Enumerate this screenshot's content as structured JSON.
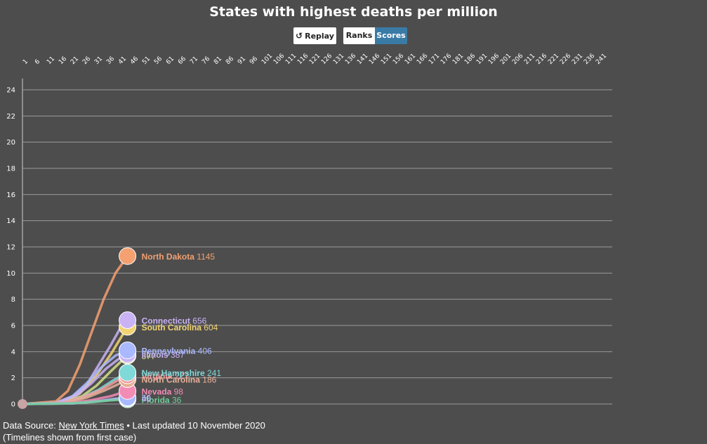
{
  "header": {
    "title": "States with highest deaths per million"
  },
  "controls": {
    "replay_label": "Replay",
    "ranks_label": "Ranks",
    "scores_label": "Scores",
    "active_mode": "Scores"
  },
  "colors": {
    "background": "#4d4d4d",
    "active_button": "#3a7ba6",
    "grid": "#9a9a9a"
  },
  "chart_data": {
    "type": "line",
    "title": "States with highest deaths per million",
    "x_ticks": [
      1,
      6,
      11,
      16,
      21,
      26,
      31,
      36,
      41,
      46,
      51,
      56,
      61,
      66,
      71,
      76,
      81,
      86,
      91,
      96,
      101,
      106,
      111,
      116,
      121,
      126,
      131,
      136,
      141,
      146,
      151,
      156,
      161,
      166,
      171,
      176,
      181,
      186,
      191,
      196,
      201,
      206,
      211,
      216,
      221,
      226,
      231,
      236,
      241
    ],
    "x_axis_position": "top",
    "ylim": [
      0,
      24
    ],
    "y_ticks": [
      0,
      2,
      4,
      6,
      8,
      10,
      12,
      14,
      16,
      18,
      20,
      22,
      24
    ],
    "grid": true,
    "current_day": 45,
    "series": [
      {
        "name": "North Dakota",
        "label_value": "1145",
        "color": "#f4a070",
        "values": [
          [
            1,
            0
          ],
          [
            15,
            0.2
          ],
          [
            20,
            1
          ],
          [
            25,
            3
          ],
          [
            30,
            5.5
          ],
          [
            35,
            8
          ],
          [
            40,
            10
          ],
          [
            45,
            11.3
          ]
        ]
      },
      {
        "name": "Connecticut",
        "label_value": "656",
        "color": "#c9b3f5",
        "values": [
          [
            1,
            0
          ],
          [
            15,
            0.1
          ],
          [
            22,
            0.6
          ],
          [
            28,
            1.5
          ],
          [
            33,
            3
          ],
          [
            38,
            4.5
          ],
          [
            42,
            5.8
          ],
          [
            45,
            6.4
          ]
        ]
      },
      {
        "name": "South Carolina",
        "label_value": "604",
        "color": "#f2d374",
        "values": [
          [
            1,
            0
          ],
          [
            18,
            0.1
          ],
          [
            25,
            0.8
          ],
          [
            32,
            2.2
          ],
          [
            38,
            3.8
          ],
          [
            42,
            5
          ],
          [
            45,
            5.9
          ]
        ]
      },
      {
        "name": "Pennsylvania",
        "label_value": "406",
        "color": "#a9b8ff",
        "values": [
          [
            1,
            0
          ],
          [
            16,
            0.1
          ],
          [
            22,
            0.6
          ],
          [
            28,
            1.6
          ],
          [
            34,
            2.8
          ],
          [
            40,
            3.7
          ],
          [
            45,
            4.1
          ]
        ]
      },
      {
        "name": "Illinois",
        "label_value": "387",
        "color": "#c9b3f5",
        "values": [
          [
            1,
            0
          ],
          [
            16,
            0.1
          ],
          [
            24,
            0.7
          ],
          [
            30,
            1.6
          ],
          [
            36,
            2.7
          ],
          [
            41,
            3.4
          ],
          [
            45,
            3.8
          ]
        ]
      },
      {
        "name": "",
        "label_value": "377",
        "color": "#d2e08a",
        "values": [
          [
            1,
            0
          ],
          [
            18,
            0.1
          ],
          [
            26,
            0.6
          ],
          [
            32,
            1.4
          ],
          [
            38,
            2.5
          ],
          [
            42,
            3.2
          ],
          [
            45,
            3.7
          ]
        ]
      },
      {
        "name": "New Hampshire",
        "label_value": "241",
        "color": "#7fd9d9",
        "values": [
          [
            1,
            0
          ],
          [
            18,
            0.1
          ],
          [
            26,
            0.5
          ],
          [
            33,
            1.1
          ],
          [
            39,
            1.8
          ],
          [
            45,
            2.4
          ]
        ]
      },
      {
        "name": "Virginia",
        "label_value": "227",
        "color": "#f59c9c",
        "values": [
          [
            1,
            0
          ],
          [
            18,
            0.1
          ],
          [
            26,
            0.5
          ],
          [
            33,
            1.0
          ],
          [
            39,
            1.6
          ],
          [
            45,
            2.2
          ]
        ]
      },
      {
        "name": "North Carolina",
        "label_value": "186",
        "color": "#e8b098",
        "values": [
          [
            1,
            0
          ],
          [
            20,
            0.1
          ],
          [
            28,
            0.5
          ],
          [
            35,
            1.0
          ],
          [
            41,
            1.5
          ],
          [
            45,
            1.9
          ]
        ]
      },
      {
        "name": "Nevada",
        "label_value": "98",
        "color": "#f28cb4",
        "values": [
          [
            1,
            0
          ],
          [
            22,
            0.1
          ],
          [
            30,
            0.3
          ],
          [
            38,
            0.6
          ],
          [
            45,
            1.0
          ]
        ]
      },
      {
        "name": "",
        "label_value": "50",
        "color": "#a9b8ff",
        "values": [
          [
            1,
            0
          ],
          [
            22,
            0.05
          ],
          [
            32,
            0.2
          ],
          [
            40,
            0.4
          ],
          [
            45,
            0.5
          ]
        ]
      },
      {
        "name": "",
        "label_value": "46",
        "color": "#c9b3f5",
        "values": [
          [
            1,
            0
          ],
          [
            22,
            0.05
          ],
          [
            32,
            0.2
          ],
          [
            40,
            0.35
          ],
          [
            45,
            0.45
          ]
        ]
      },
      {
        "name": "Florida",
        "label_value": "36",
        "color": "#6fcf9a",
        "values": [
          [
            1,
            0
          ],
          [
            20,
            0.05
          ],
          [
            30,
            0.15
          ],
          [
            38,
            0.28
          ],
          [
            45,
            0.36
          ]
        ]
      }
    ]
  },
  "footer": {
    "source_prefix": "Data Source:",
    "source_link": "New York Times",
    "updated": "• Last updated 10 November 2020",
    "note": "(Timelines shown from first case)"
  }
}
